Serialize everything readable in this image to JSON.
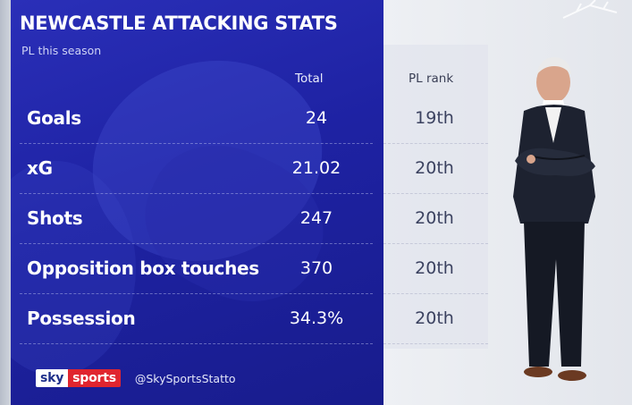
{
  "graphic": {
    "title": "NEWCASTLE ATTACKING STATS",
    "subtitle": "PL this season",
    "columns": {
      "total": "Total",
      "rank": "PL rank"
    },
    "rows": [
      {
        "label": "Goals",
        "total": "24",
        "rank": "19th"
      },
      {
        "label": "xG",
        "total": "21.02",
        "rank": "20th"
      },
      {
        "label": "Shots",
        "total": "247",
        "rank": "20th"
      },
      {
        "label": "Opposition box touches",
        "total": "370",
        "rank": "20th"
      },
      {
        "label": "Possession",
        "total": "34.3%",
        "rank": "20th"
      }
    ]
  },
  "footer": {
    "logo_sky": "sky",
    "logo_sports": "sports",
    "handle": "@SkySportsStatto"
  },
  "colors": {
    "panel_blue": "#1e22a3",
    "sky_red": "#e0252f",
    "rank_text": "#3b4260"
  },
  "images": {
    "person": "person-photo"
  }
}
